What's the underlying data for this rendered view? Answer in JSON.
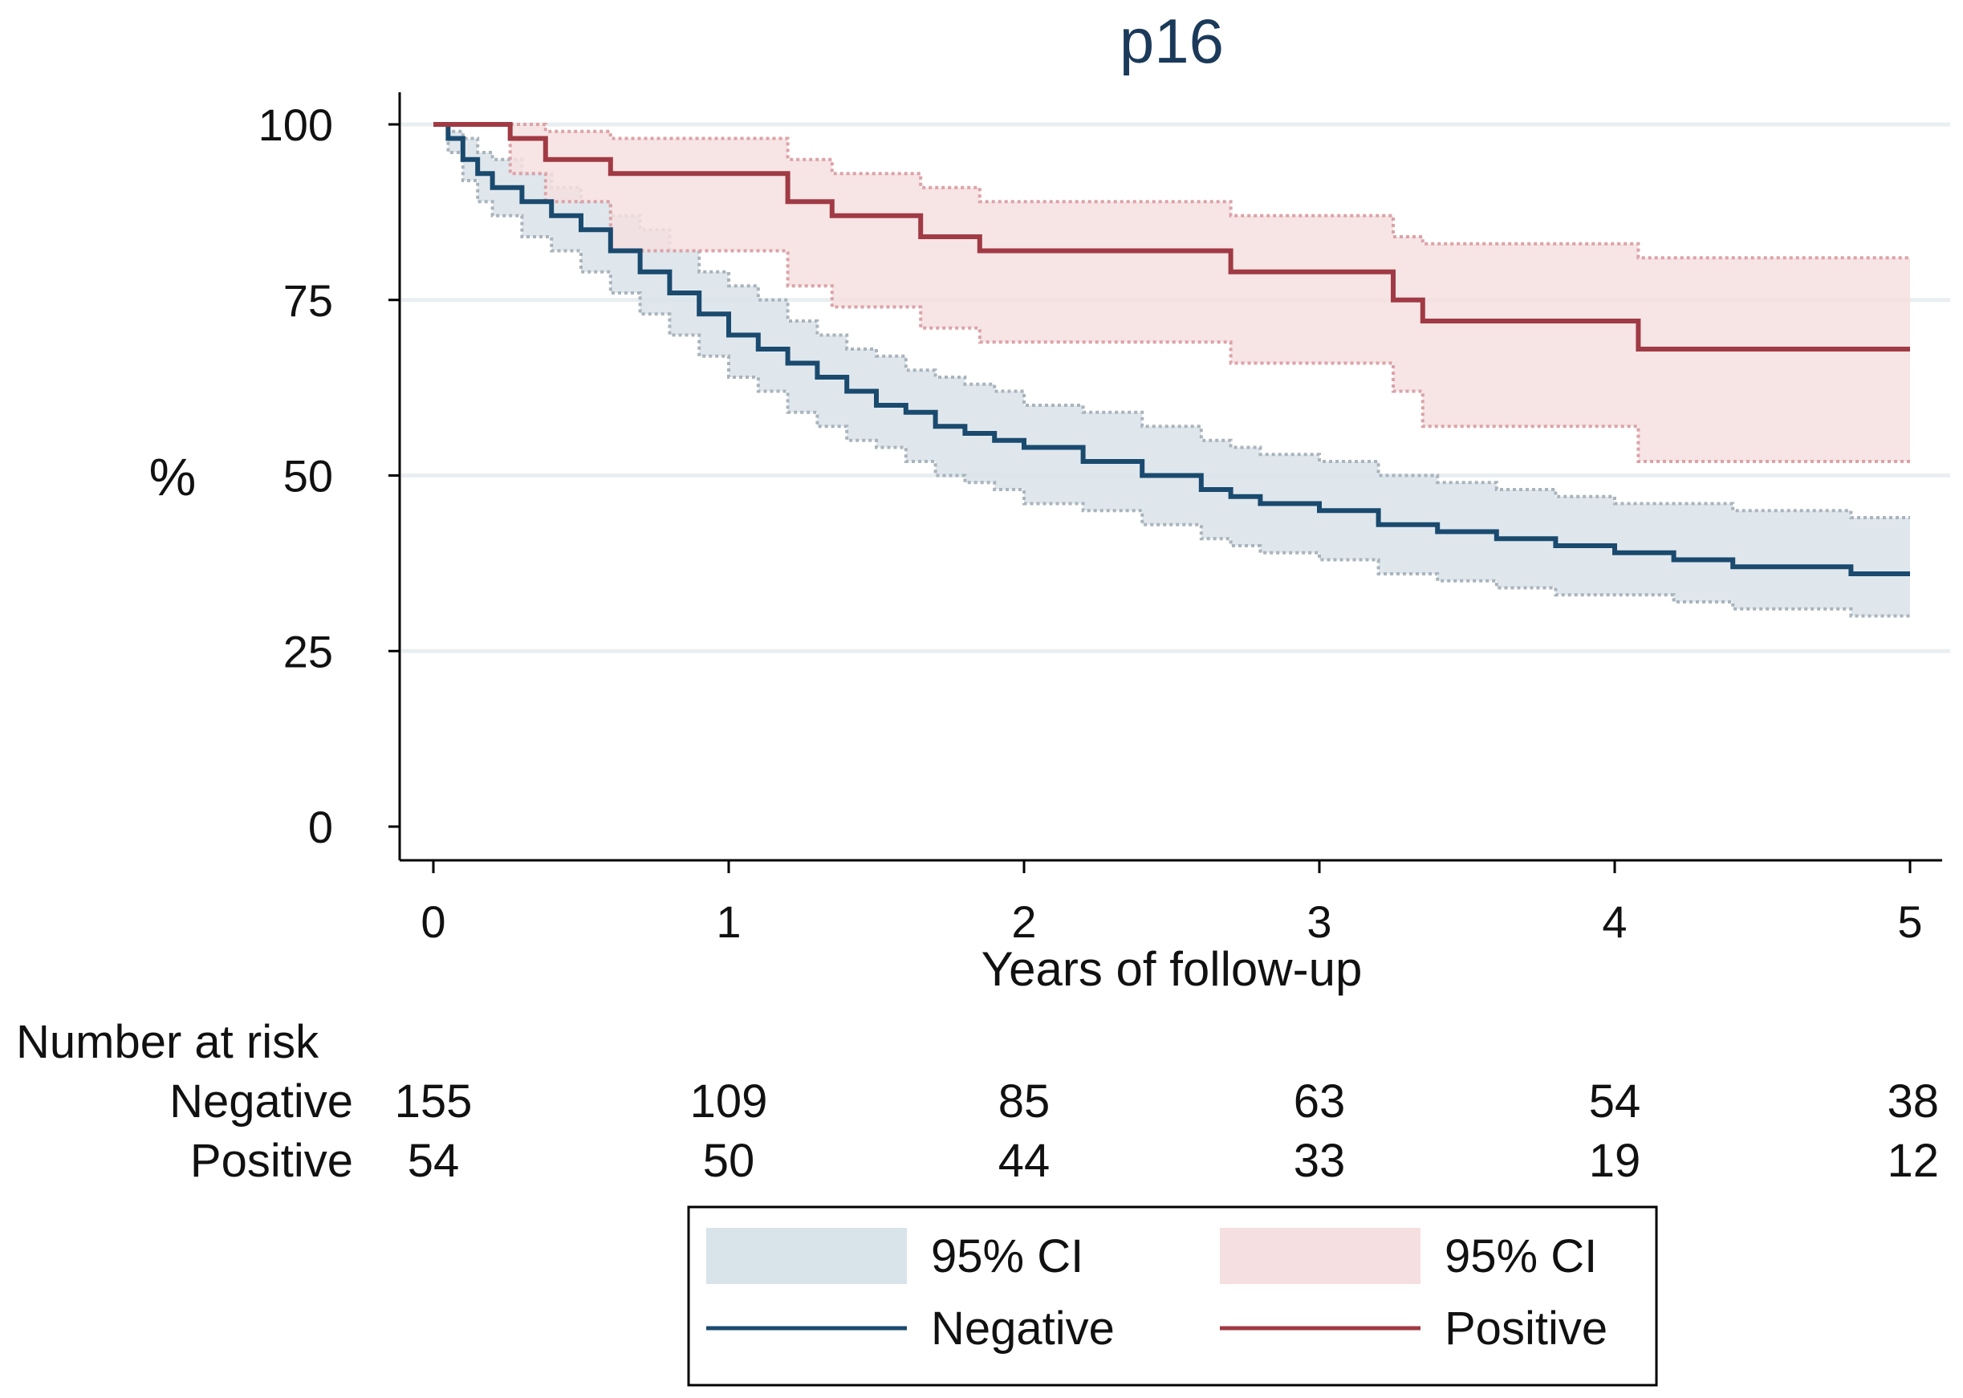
{
  "colors": {
    "negative_line": "#1a4a6e",
    "negative_band": "#d9e3ea",
    "negative_band_edge": "#a9b4bc",
    "positive_line": "#a03a44",
    "positive_band": "#f6dfe0",
    "positive_band_edge": "#dba3a7"
  },
  "chart_data": {
    "type": "line",
    "title": "p16",
    "xlabel": "Years of follow-up",
    "ylabel": "%",
    "xlim": [
      0,
      5
    ],
    "ylim": [
      0,
      100
    ],
    "xticks": [
      "0",
      "1",
      "2",
      "3",
      "4",
      "5"
    ],
    "yticks": [
      "0",
      "25",
      "50",
      "75",
      "100"
    ],
    "grid": true,
    "series": [
      {
        "name": "Negative",
        "x": [
          0,
          0.05,
          0.1,
          0.15,
          0.2,
          0.3,
          0.4,
          0.5,
          0.6,
          0.7,
          0.8,
          0.9,
          1.0,
          1.1,
          1.2,
          1.3,
          1.4,
          1.5,
          1.6,
          1.7,
          1.8,
          1.9,
          2.0,
          2.2,
          2.4,
          2.6,
          2.7,
          2.8,
          3.0,
          3.2,
          3.4,
          3.6,
          3.8,
          4.0,
          4.2,
          4.4,
          4.6,
          4.8,
          5.0
        ],
        "y": [
          100,
          98,
          95,
          93,
          91,
          89,
          87,
          85,
          82,
          79,
          76,
          73,
          70,
          68,
          66,
          64,
          62,
          60,
          59,
          57,
          56,
          55,
          54,
          52,
          50,
          48,
          47,
          46,
          45,
          43,
          42,
          41,
          40,
          39,
          38,
          37,
          37,
          36,
          36
        ],
        "ci_low": [
          100,
          96,
          92,
          89,
          87,
          84,
          82,
          79,
          76,
          73,
          70,
          67,
          64,
          62,
          59,
          57,
          55,
          54,
          52,
          50,
          49,
          48,
          46,
          45,
          43,
          41,
          40,
          39,
          38,
          36,
          35,
          34,
          33,
          33,
          32,
          31,
          31,
          30,
          30
        ],
        "ci_high": [
          100,
          99,
          98,
          96,
          95,
          93,
          91,
          89,
          87,
          85,
          82,
          79,
          77,
          75,
          72,
          70,
          68,
          67,
          65,
          64,
          63,
          62,
          60,
          59,
          57,
          55,
          54,
          53,
          52,
          50,
          49,
          48,
          47,
          46,
          46,
          45,
          45,
          44,
          44
        ]
      },
      {
        "name": "Positive",
        "x": [
          0,
          0.26,
          0.38,
          0.6,
          1.2,
          1.35,
          1.65,
          1.85,
          2.7,
          3.25,
          3.35,
          4.08,
          5.0
        ],
        "y": [
          100,
          98,
          95,
          93,
          89,
          87,
          84,
          82,
          79,
          75,
          72,
          68,
          68
        ],
        "ci_low": [
          100,
          93,
          89,
          82,
          77,
          74,
          71,
          69,
          66,
          62,
          57,
          52,
          52
        ],
        "ci_high": [
          100,
          100,
          99,
          98,
          95,
          93,
          91,
          89,
          87,
          84,
          83,
          81,
          81
        ]
      }
    ],
    "risk_table": {
      "header": "Number at risk",
      "rows": [
        {
          "label": "Negative",
          "values": [
            "155",
            "109",
            "85",
            "63",
            "54",
            "38"
          ]
        },
        {
          "label": "Positive",
          "values": [
            "54",
            "50",
            "44",
            "33",
            "19",
            "12"
          ]
        }
      ]
    },
    "legend": {
      "position": "bottom",
      "items": [
        {
          "label": "95% CI",
          "kind": "band",
          "series": "Negative"
        },
        {
          "label": "95% CI",
          "kind": "band",
          "series": "Positive"
        },
        {
          "label": "Negative",
          "kind": "line",
          "series": "Negative"
        },
        {
          "label": "Positive",
          "kind": "line",
          "series": "Positive"
        }
      ]
    }
  }
}
